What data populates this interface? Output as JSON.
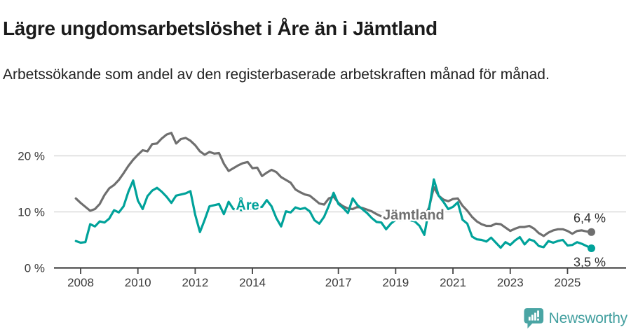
{
  "header": {
    "title": "Lägre ungdomsarbetslöshet i Åre än i Jämtland",
    "subtitle": "Arbetssökande som andel av den registerbaserade arbetskraften månad för månad."
  },
  "chart_data": {
    "type": "line",
    "x_unit": "year (monthly time series)",
    "x_start": 2007.8333,
    "x_step": 0.16667,
    "xlim": [
      2007.1,
      2027.0
    ],
    "ylim": [
      0,
      26
    ],
    "grid": "horizontal gridlines at 10 % and 20 %, dark baseline at 0 %",
    "legend": "direct labels placed on the lines",
    "y_ticks": [
      {
        "label": "0 %",
        "value": 0
      },
      {
        "label": "10 %",
        "value": 10
      },
      {
        "label": "20 %",
        "value": 20
      }
    ],
    "x_ticks": [
      {
        "label": "2008",
        "value": 2008
      },
      {
        "label": "2010",
        "value": 2010
      },
      {
        "label": "2012",
        "value": 2012
      },
      {
        "label": "2014",
        "value": 2014
      },
      {
        "label": "2017",
        "value": 2017
      },
      {
        "label": "2019",
        "value": 2019
      },
      {
        "label": "2021",
        "value": 2021
      },
      {
        "label": "2023",
        "value": 2023
      },
      {
        "label": "2025",
        "value": 2025
      }
    ],
    "series": [
      {
        "name": "Jämtland",
        "color": "#6f6f6f",
        "end_label": "6,4 %",
        "end_value": 6.4,
        "label_x": 2018.55,
        "label_y": 8.6,
        "values": [
          12.4,
          11.6,
          10.9,
          10.2,
          10.5,
          11.4,
          13.0,
          14.2,
          14.8,
          15.7,
          16.9,
          18.2,
          19.3,
          20.2,
          21.0,
          20.8,
          22.1,
          22.2,
          23.1,
          23.8,
          24.1,
          22.2,
          23.0,
          23.2,
          22.7,
          21.9,
          20.8,
          20.2,
          20.7,
          20.4,
          20.5,
          18.6,
          17.3,
          17.8,
          18.3,
          18.7,
          18.9,
          17.8,
          17.9,
          16.4,
          17.0,
          17.5,
          17.1,
          16.2,
          15.7,
          15.2,
          14.0,
          13.5,
          13.1,
          12.9,
          12.2,
          11.5,
          11.3,
          12.4,
          12.7,
          11.6,
          11.0,
          10.6,
          10.5,
          10.9,
          10.7,
          10.4,
          10.1,
          9.6,
          9.2,
          9.0,
          9.2,
          9.4,
          9.3,
          9.0,
          9.2,
          8.9,
          8.7,
          9.0,
          10.8,
          14.4,
          12.9,
          12.2,
          11.9,
          12.3,
          12.4,
          11.1,
          10.2,
          9.1,
          8.3,
          7.8,
          7.5,
          7.5,
          7.9,
          7.8,
          7.2,
          6.6,
          7.0,
          7.3,
          7.3,
          7.5,
          7.0,
          6.2,
          5.7,
          6.3,
          6.7,
          6.9,
          6.9,
          6.6,
          6.1,
          6.6,
          6.7,
          6.5,
          6.4
        ]
      },
      {
        "name": "Åre",
        "color": "#00a29a",
        "end_label": "3,5 %",
        "end_value": 3.5,
        "label_x": 2013.42,
        "label_y": 10.35,
        "values": [
          4.8,
          4.5,
          4.6,
          7.8,
          7.4,
          8.3,
          8.1,
          8.8,
          10.3,
          9.9,
          11.0,
          13.6,
          15.6,
          12.0,
          10.5,
          12.8,
          13.8,
          14.3,
          13.6,
          12.7,
          11.6,
          12.9,
          13.1,
          13.3,
          13.7,
          9.5,
          6.4,
          8.6,
          11.0,
          11.2,
          11.4,
          9.6,
          11.8,
          10.5,
          10.4,
          10.3,
          10.5,
          10.6,
          10.8,
          10.9,
          12.1,
          11.0,
          8.9,
          7.4,
          10.1,
          9.9,
          10.8,
          10.5,
          10.7,
          10.1,
          8.5,
          7.9,
          9.1,
          11.1,
          13.4,
          11.4,
          10.7,
          9.8,
          12.4,
          11.2,
          10.5,
          9.8,
          8.9,
          8.2,
          8.1,
          6.9,
          7.9,
          8.6,
          8.5,
          8.7,
          8.5,
          8.3,
          7.5,
          5.9,
          10.5,
          15.8,
          12.9,
          11.8,
          10.5,
          10.9,
          11.7,
          8.6,
          7.9,
          5.6,
          5.1,
          5.0,
          4.7,
          5.4,
          4.5,
          3.6,
          4.6,
          4.1,
          4.9,
          5.5,
          4.2,
          5.1,
          4.8,
          3.9,
          3.7,
          4.8,
          4.5,
          4.8,
          5.0,
          4.0,
          4.1,
          4.6,
          4.3,
          3.9,
          3.5
        ]
      }
    ],
    "colors": {
      "axis": "#454545",
      "gridline": "#d9d9d9",
      "tick_label": "#3a3a3a",
      "end_label_text": "#2e2e2e"
    }
  },
  "footer": {
    "brand": "Newsworthy",
    "brand_color": "#429f9f",
    "icon": "newsworthy-speech-bubble-chart-icon"
  }
}
